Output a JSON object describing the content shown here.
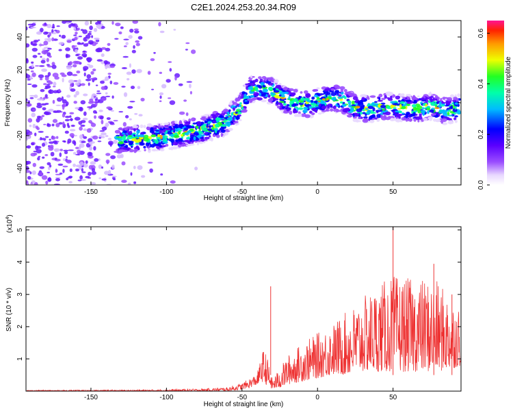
{
  "title": "C2E1.2024.253.20.34.R09",
  "chart_data": [
    {
      "type": "heatmap",
      "xlabel": "Height of straight line (km)",
      "ylabel": "Frequency (Hz)",
      "xlim": [
        -193,
        95
      ],
      "ylim": [
        -50,
        50
      ],
      "xticks": [
        -150,
        -100,
        -50,
        0,
        50
      ],
      "yticks": [
        -40,
        -20,
        0,
        20,
        40
      ],
      "ridge": {
        "x": [
          -133,
          -120,
          -105,
          -90,
          -75,
          -62,
          -52,
          -45,
          -38,
          -30,
          -22,
          -14,
          -6,
          0,
          8,
          16,
          25,
          35,
          45,
          55,
          65,
          75,
          85,
          94
        ],
        "y": [
          -23,
          -22,
          -21,
          -19,
          -16,
          -12,
          -4,
          8,
          9,
          7,
          2,
          0,
          -1,
          1,
          3,
          2,
          -3,
          -4,
          -2,
          -3,
          -4,
          -2,
          -5,
          -3
        ]
      },
      "colorbar": {
        "label": "Normalized spectral amplitude",
        "lim": [
          0.0,
          0.65
        ],
        "ticks": [
          "0.0",
          "0.2",
          "0.4",
          "0.6"
        ]
      }
    },
    {
      "type": "line",
      "xlabel": "Height of straight line (km)",
      "ylabel": "SNR (10 * v/v)",
      "multiplier": "(x10",
      "multiplier_exp": "4",
      "multiplier_close": ")",
      "xlim": [
        -193,
        95
      ],
      "ylim": [
        0,
        5.1
      ],
      "xticks": [
        -150,
        -100,
        -50,
        0,
        50
      ],
      "yticks": [
        1,
        2,
        3,
        4,
        5
      ],
      "color": "#ee3333",
      "envelope": {
        "x": [
          -193,
          -120,
          -80,
          -60,
          -50,
          -45,
          -40,
          -36,
          -34,
          -30,
          -25,
          -20,
          -10,
          0,
          10,
          20,
          30,
          40,
          50,
          60,
          70,
          80,
          90,
          95
        ],
        "low": [
          0.0,
          0.0,
          0.0,
          0.0,
          0.05,
          0.1,
          0.2,
          0.3,
          0.2,
          0.05,
          0.1,
          0.2,
          0.3,
          0.4,
          0.5,
          0.5,
          0.6,
          0.6,
          0.6,
          0.6,
          0.6,
          0.6,
          0.7,
          0.8
        ],
        "high": [
          0.03,
          0.04,
          0.07,
          0.12,
          0.25,
          0.4,
          0.55,
          1.3,
          1.2,
          0.4,
          0.7,
          1.1,
          1.5,
          1.8,
          2.1,
          2.5,
          2.9,
          3.3,
          3.6,
          3.5,
          3.5,
          3.4,
          2.8,
          2.6
        ]
      },
      "spikes": [
        {
          "x": -31,
          "y": 3.25
        },
        {
          "x": 50,
          "y": 5.1
        },
        {
          "x": 77,
          "y": 3.95
        },
        {
          "x": 89,
          "y": 3.0
        }
      ]
    }
  ]
}
